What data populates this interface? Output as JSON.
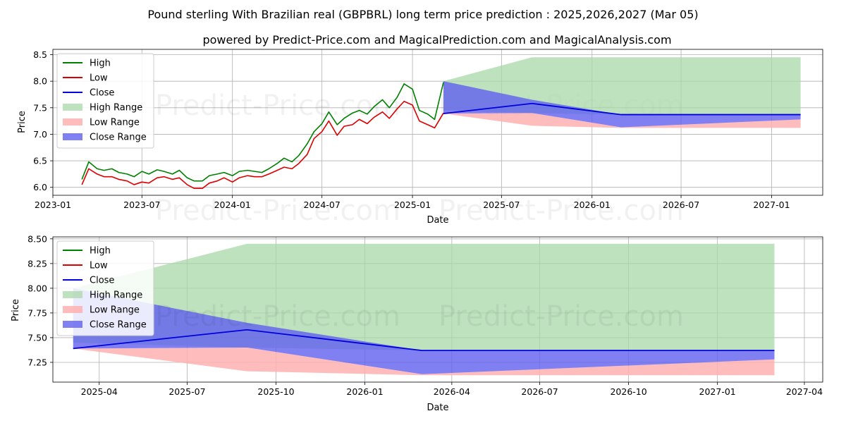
{
  "title": "Pound sterling With Brazilian real (GBPBRL) long term price prediction : 2025,2026,2027 (Mar 05)",
  "subtitle": "powered by Predict-Price.com and MagicalPrediction.com and MagicalAnalysis.com",
  "watermark": "Predict-Price.com",
  "colors": {
    "high": "#008000",
    "low": "#dd0000",
    "close": "#0000dd",
    "high_range": "#a8d8a8",
    "low_range": "#ffb0b0",
    "close_range": "#6060f0"
  },
  "chart_data": [
    {
      "type": "line",
      "panel": "top",
      "xlabel": "Date",
      "ylabel": "Price",
      "xlim": [
        "2023-01-01",
        "2027-04-15"
      ],
      "ylim": [
        5.85,
        8.6
      ],
      "x_ticks": [
        "2023-01",
        "2023-07",
        "2024-01",
        "2024-07",
        "2025-01",
        "2025-07",
        "2026-01",
        "2026-07",
        "2027-01"
      ],
      "y_ticks": [
        "6.0",
        "6.5",
        "7.0",
        "7.5",
        "8.0",
        "8.5"
      ],
      "grid": true,
      "legend": {
        "position": "top-left",
        "entries": [
          "High",
          "Low",
          "Close",
          "High Range",
          "Low Range",
          "Close Range"
        ]
      },
      "history": {
        "dates": [
          "2023-03-01",
          "2023-03-15",
          "2023-04-01",
          "2023-04-15",
          "2023-05-01",
          "2023-05-15",
          "2023-06-01",
          "2023-06-15",
          "2023-07-01",
          "2023-07-15",
          "2023-08-01",
          "2023-08-15",
          "2023-09-01",
          "2023-09-15",
          "2023-10-01",
          "2023-10-15",
          "2023-11-01",
          "2023-11-15",
          "2023-12-01",
          "2023-12-15",
          "2024-01-01",
          "2024-01-15",
          "2024-02-01",
          "2024-02-15",
          "2024-03-01",
          "2024-03-15",
          "2024-04-01",
          "2024-04-15",
          "2024-05-01",
          "2024-05-15",
          "2024-06-01",
          "2024-06-15",
          "2024-07-01",
          "2024-07-15",
          "2024-08-01",
          "2024-08-15",
          "2024-09-01",
          "2024-09-15",
          "2024-10-01",
          "2024-10-15",
          "2024-11-01",
          "2024-11-15",
          "2024-12-01",
          "2024-12-15",
          "2025-01-01",
          "2025-01-15",
          "2025-02-01",
          "2025-02-15",
          "2025-03-05"
        ],
        "high": [
          6.15,
          6.48,
          6.35,
          6.32,
          6.35,
          6.28,
          6.25,
          6.2,
          6.3,
          6.25,
          6.33,
          6.3,
          6.25,
          6.32,
          6.18,
          6.12,
          6.12,
          6.22,
          6.25,
          6.28,
          6.22,
          6.3,
          6.32,
          6.3,
          6.28,
          6.35,
          6.45,
          6.55,
          6.48,
          6.6,
          6.82,
          7.05,
          7.2,
          7.42,
          7.18,
          7.3,
          7.4,
          7.45,
          7.38,
          7.52,
          7.65,
          7.5,
          7.7,
          7.95,
          7.85,
          7.45,
          7.38,
          7.28,
          7.98
        ],
        "low": [
          6.05,
          6.35,
          6.25,
          6.2,
          6.2,
          6.15,
          6.12,
          6.05,
          6.1,
          6.08,
          6.18,
          6.2,
          6.15,
          6.18,
          6.05,
          5.98,
          5.98,
          6.08,
          6.12,
          6.18,
          6.1,
          6.18,
          6.22,
          6.2,
          6.2,
          6.25,
          6.32,
          6.38,
          6.35,
          6.45,
          6.62,
          6.92,
          7.05,
          7.25,
          6.98,
          7.15,
          7.18,
          7.28,
          7.2,
          7.32,
          7.42,
          7.3,
          7.48,
          7.62,
          7.55,
          7.25,
          7.18,
          7.12,
          7.4
        ]
      },
      "forecast": {
        "dates": [
          "2025-03-05",
          "2025-09-01",
          "2026-03-01",
          "2027-03-01"
        ],
        "close": [
          7.39,
          7.58,
          7.37,
          7.37
        ],
        "high_range": [
          [
            7.45,
            8.0
          ],
          [
            7.4,
            8.45
          ],
          [
            7.37,
            8.45
          ],
          [
            7.37,
            8.45
          ]
        ],
        "low_range": [
          [
            7.39,
            7.39
          ],
          [
            7.16,
            7.4
          ],
          [
            7.12,
            7.13
          ],
          [
            7.12,
            7.28
          ]
        ],
        "close_range": [
          [
            7.39,
            8.0
          ],
          [
            7.4,
            7.65
          ],
          [
            7.13,
            7.37
          ],
          [
            7.28,
            7.37
          ]
        ]
      }
    },
    {
      "type": "line",
      "panel": "bottom",
      "xlabel": "Date",
      "ylabel": "Price",
      "xlim": [
        "2025-02-12",
        "2027-04-20"
      ],
      "ylim": [
        7.05,
        8.52
      ],
      "x_ticks": [
        "2025-04",
        "2025-07",
        "2025-10",
        "2026-01",
        "2026-04",
        "2026-07",
        "2026-10",
        "2027-01",
        "2027-04"
      ],
      "y_ticks": [
        "7.25",
        "7.50",
        "7.75",
        "8.00",
        "8.25",
        "8.50"
      ],
      "grid": true,
      "legend": {
        "position": "top-left",
        "entries": [
          "High",
          "Low",
          "Close",
          "High Range",
          "Low Range",
          "Close Range"
        ]
      },
      "forecast": {
        "dates": [
          "2025-03-05",
          "2025-09-01",
          "2026-03-01",
          "2027-03-01"
        ],
        "close": [
          7.39,
          7.58,
          7.37,
          7.37
        ],
        "high_range": [
          [
            7.45,
            8.0
          ],
          [
            7.4,
            8.45
          ],
          [
            7.37,
            8.45
          ],
          [
            7.37,
            8.45
          ]
        ],
        "low_range": [
          [
            7.39,
            7.39
          ],
          [
            7.16,
            7.4
          ],
          [
            7.12,
            7.13
          ],
          [
            7.12,
            7.28
          ]
        ],
        "close_range": [
          [
            7.39,
            8.0
          ],
          [
            7.4,
            7.65
          ],
          [
            7.13,
            7.37
          ],
          [
            7.28,
            7.37
          ]
        ]
      }
    }
  ]
}
